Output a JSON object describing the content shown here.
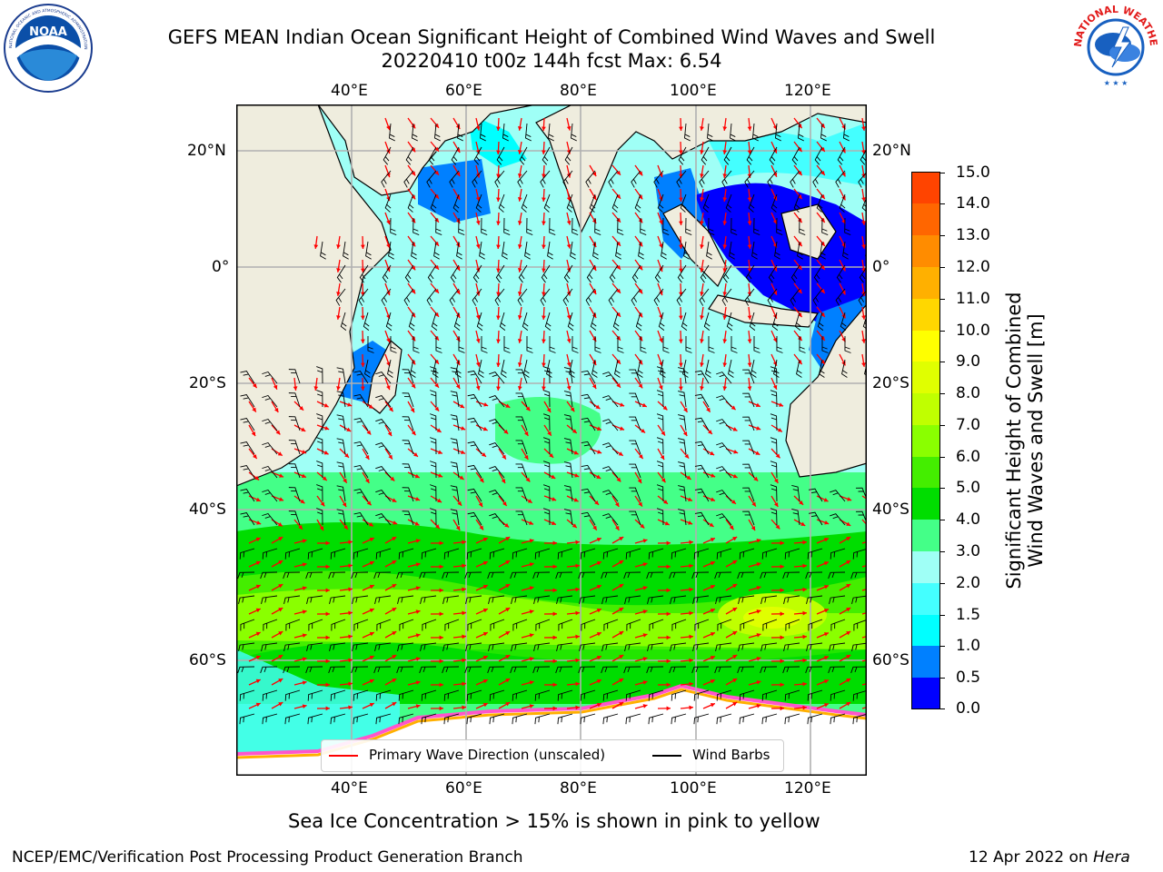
{
  "header": {
    "title_line1": "GEFS MEAN Indian Ocean Significant Height of Combined Wind Waves and Swell",
    "title_line2": "20220410 t00z 144h fcst   Max: 6.54"
  },
  "logos": {
    "noaa_text": "NOAA",
    "noaa_ring_text": "NATIONAL OCEANIC AND ATMOSPHERIC ADMINISTRATION · U.S. DEPARTMENT OF COMMERCE",
    "nws_ring_text": "NATIONAL WEATHER SERVICE"
  },
  "map": {
    "lon_ticks": [
      "40°E",
      "60°E",
      "80°E",
      "100°E",
      "120°E"
    ],
    "lat_ticks_left": [
      "20°N",
      "0°",
      "20°S",
      "40°S",
      "60°S"
    ],
    "lat_ticks_right": [
      "20°N",
      "0°",
      "20°S",
      "40°S",
      "60°S"
    ],
    "lon_range": [
      20,
      130
    ],
    "lat_range": [
      -71,
      27
    ],
    "land_color": "#efedde",
    "ocean_base_color": "#9ffff6",
    "legend": {
      "wave_label": "Primary Wave Direction (unscaled)",
      "wind_label": "Wind Barbs",
      "wave_color": "#ff0000",
      "wind_color": "#000000"
    }
  },
  "colorbar": {
    "label_line1": "Significant Height of Combined",
    "label_line2": "Wind Waves and Swell [m]",
    "ticks": [
      "15.0",
      "14.0",
      "13.0",
      "12.0",
      "11.0",
      "10.0",
      "9.0",
      "8.0",
      "7.0",
      "6.0",
      "5.0",
      "4.0",
      "3.0",
      "2.0",
      "1.5",
      "1.0",
      "0.5",
      "0.0"
    ],
    "colors_top_to_bottom": [
      "#ff0000",
      "#ff2200",
      "#ff4400",
      "#ff6600",
      "#ff8c00",
      "#ffb000",
      "#ffd700",
      "#ffff00",
      "#e0ff00",
      "#c0ff00",
      "#8aff00",
      "#44ee00",
      "#00dd00",
      "#44ff88",
      "#9ffff6",
      "#44ffff",
      "#00ffff",
      "#0080ff",
      "#0000ff"
    ]
  },
  "notes": {
    "sea_ice": "Sea Ice Concentration > 15% is shown in pink to yellow"
  },
  "footer": {
    "left": "NCEP/EMC/Verification Post Processing Product Generation Branch",
    "right_prefix": "12 Apr 2022 on ",
    "right_host": "Hera"
  }
}
